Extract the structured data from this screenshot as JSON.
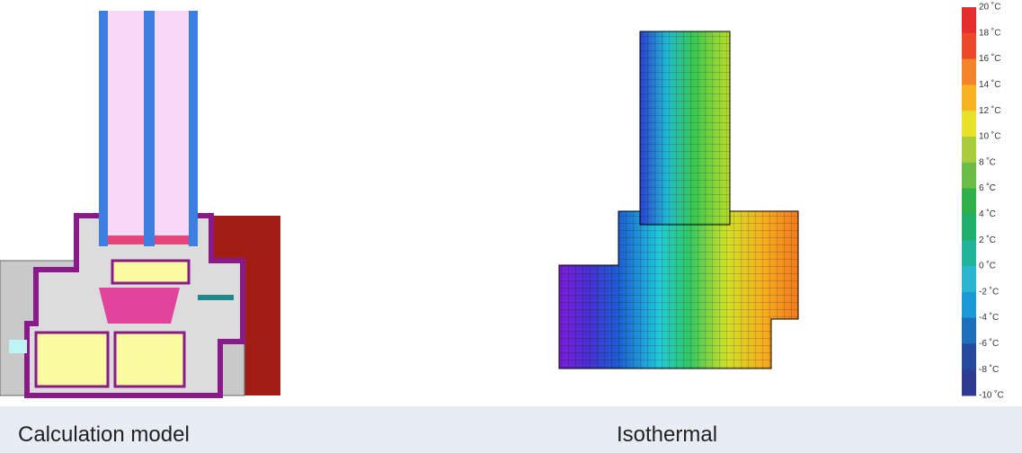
{
  "captions": [
    "Calculation model",
    "Isothermal"
  ],
  "color_scale": {
    "labels": [
      "20 ˚C",
      "18 ˚C",
      "16 ˚C",
      "14 ˚C",
      "12 ˚C",
      "10 ˚C",
      "8 ˚C",
      "6 ˚C",
      "4 ˚C",
      "2 ˚C",
      "0 ˚C",
      "-2 ˚C",
      "-4 ˚C",
      "-6 ˚C",
      "-8 ˚C",
      "-10 ˚C"
    ],
    "colors": [
      "#e52f2e",
      "#ed4a2b",
      "#f3842a",
      "#f8b222",
      "#e7e12b",
      "#a9cc3b",
      "#6cbd45",
      "#2fb04a",
      "#1eaf6c",
      "#21b49b",
      "#2bb5d0",
      "#1c9ad7",
      "#1c70bb",
      "#24499f",
      "#2d3b92"
    ]
  }
}
